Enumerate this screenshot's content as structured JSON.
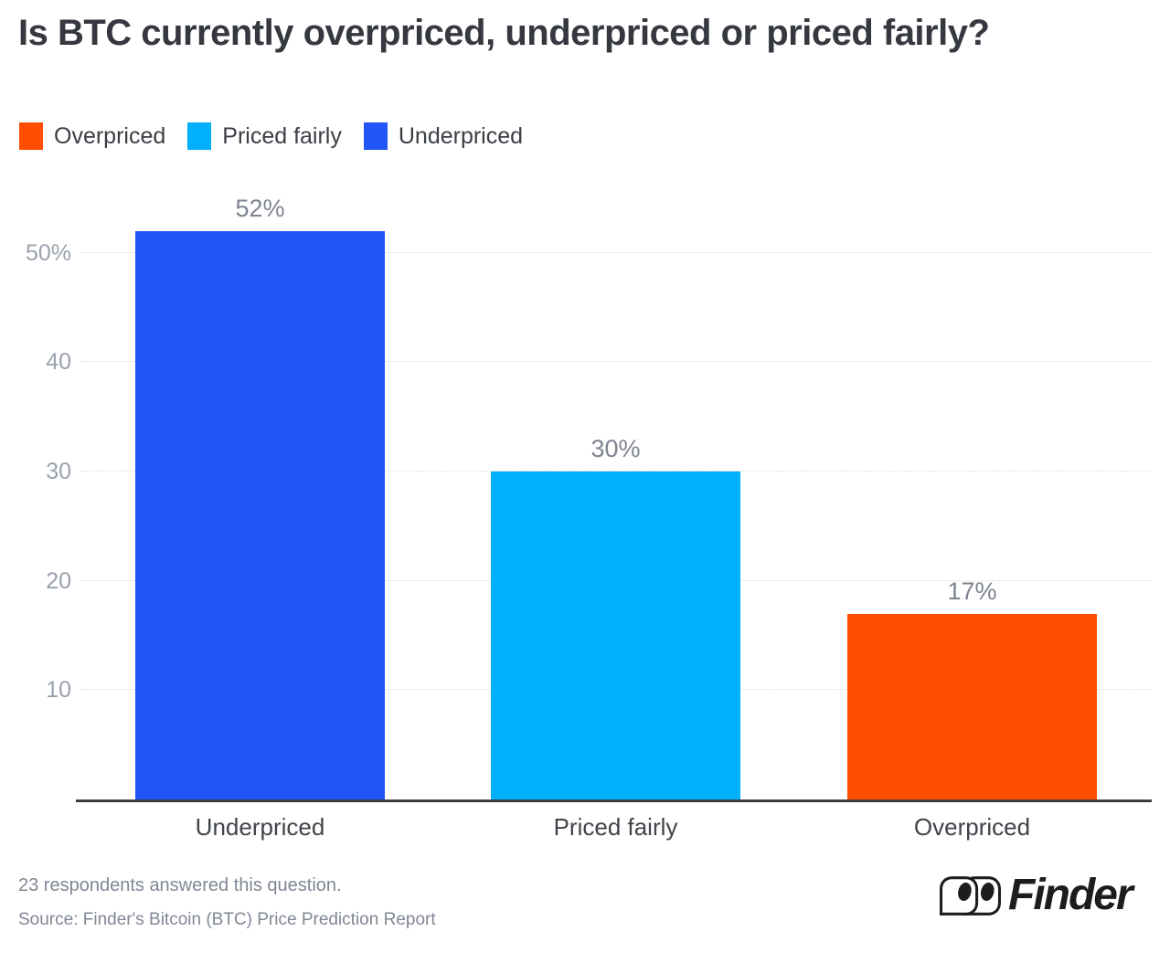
{
  "title": "Is BTC currently overpriced, underpriced or priced fairly?",
  "legend": {
    "items": [
      {
        "label": "Overpriced",
        "color": "#ff4e00"
      },
      {
        "label": "Priced fairly",
        "color": "#00b0fb"
      },
      {
        "label": "Underpriced",
        "color": "#2155f6"
      }
    ]
  },
  "chart_data": {
    "type": "bar",
    "title": "Is BTC currently overpriced, underpriced or priced fairly?",
    "categories": [
      "Underpriced",
      "Priced fairly",
      "Overpriced"
    ],
    "values": [
      52,
      30,
      17
    ],
    "value_labels": [
      "52%",
      "30%",
      "17%"
    ],
    "bar_colors": [
      "#2155f6",
      "#00b0fb",
      "#ff4e00"
    ],
    "xlabel": "",
    "ylabel": "",
    "y_ticks": [
      10,
      20,
      30,
      40,
      50
    ],
    "y_tick_labels": [
      "10",
      "20",
      "30",
      "40",
      "50%"
    ],
    "ylim": [
      0,
      56.4
    ],
    "unit": "percent",
    "grid": "horizontal-dotted",
    "legend_position": "top-left"
  },
  "footer": {
    "note": "23 respondents answered this question.",
    "source": "Source: Finder's Bitcoin (BTC) Price Prediction Report"
  },
  "brand": {
    "name": "Finder",
    "logo_icon": "finder-eyes-icon",
    "color": "#1d1d20"
  }
}
